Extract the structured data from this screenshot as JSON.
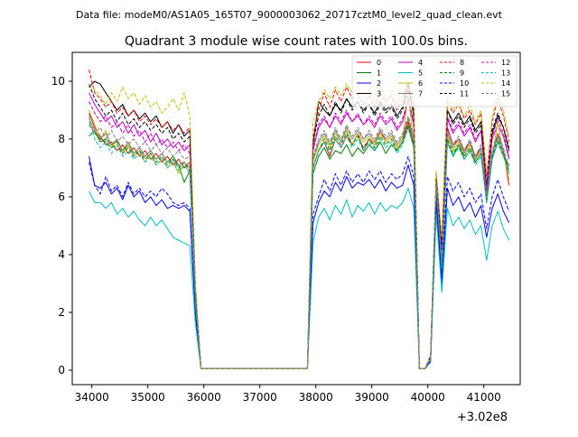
{
  "header": {
    "data_file": "Data file: modeM0/AS1A05_165T07_9000003062_20717cztM0_level2_quad_clean.evt"
  },
  "chart_data": {
    "type": "line",
    "title": "Quadrant 3 module wise count rates with 100.0s bins.",
    "xlabel": "",
    "ylabel": "",
    "x_offset_label": "+3.02e8",
    "xlim": [
      33650,
      41650
    ],
    "ylim": [
      -0.5,
      11.0
    ],
    "xticks": [
      34000,
      35000,
      36000,
      37000,
      38000,
      39000,
      40000,
      41000
    ],
    "yticks": [
      0,
      2,
      4,
      6,
      8,
      10
    ],
    "grid": false,
    "legend_position": "top-right",
    "legend_columns": 4,
    "x": [
      33950,
      34050,
      34150,
      34250,
      34350,
      34450,
      34550,
      34650,
      34750,
      34850,
      34950,
      35050,
      35150,
      35250,
      35350,
      35450,
      35550,
      35650,
      35750,
      35850,
      35950,
      36050,
      37850,
      37950,
      38050,
      38150,
      38250,
      38350,
      38450,
      38550,
      38650,
      38750,
      38850,
      38950,
      39050,
      39150,
      39250,
      39350,
      39450,
      39550,
      39650,
      39750,
      39850,
      39950,
      40050,
      40150,
      40250,
      40350,
      40450,
      40550,
      40650,
      40750,
      40850,
      40950,
      41050,
      41150,
      41250,
      41350,
      41450
    ],
    "series": [
      {
        "name": "0",
        "color": "#ff0000",
        "dash": false,
        "values": [
          8.9,
          8.4,
          8.1,
          7.8,
          7.9,
          7.6,
          7.8,
          7.5,
          7.7,
          7.4,
          7.6,
          7.3,
          7.5,
          7.2,
          7.4,
          7.1,
          7.3,
          7.0,
          7.2,
          2.5,
          0.05,
          0.05,
          0.05,
          7.0,
          7.6,
          7.9,
          7.4,
          8.0,
          7.7,
          8.1,
          7.8,
          8.2,
          7.6,
          8.0,
          7.8,
          8.3,
          7.9,
          8.1,
          7.7,
          8.0,
          8.6,
          7.8,
          0.05,
          0.05,
          0.4,
          6.5,
          3.5,
          8.4,
          7.8,
          8.0,
          7.6,
          7.9,
          7.4,
          7.7,
          6.0,
          7.5,
          8.2,
          7.6,
          6.4
        ]
      },
      {
        "name": "1",
        "color": "#008000",
        "dash": false,
        "values": [
          8.1,
          8.3,
          7.9,
          8.0,
          7.8,
          7.9,
          7.6,
          7.8,
          7.5,
          7.7,
          7.4,
          7.6,
          7.3,
          7.5,
          7.2,
          7.4,
          7.1,
          6.5,
          6.9,
          2.4,
          0.05,
          0.05,
          0.05,
          6.8,
          7.4,
          7.7,
          7.3,
          7.6,
          7.5,
          7.8,
          7.4,
          7.7,
          7.5,
          7.8,
          7.6,
          7.9,
          7.5,
          7.8,
          7.6,
          7.9,
          8.4,
          7.7,
          0.05,
          0.05,
          0.4,
          6.3,
          3.4,
          7.9,
          7.4,
          7.8,
          7.3,
          7.6,
          7.2,
          7.5,
          5.8,
          7.3,
          7.9,
          7.4,
          7.1
        ]
      },
      {
        "name": "2",
        "color": "#0000ff",
        "dash": false,
        "values": [
          7.4,
          6.4,
          6.3,
          6.5,
          6.1,
          6.3,
          5.9,
          6.4,
          6.0,
          6.2,
          5.8,
          6.0,
          5.7,
          5.9,
          5.6,
          5.7,
          5.6,
          5.7,
          5.5,
          1.9,
          0.05,
          0.05,
          0.05,
          5.1,
          5.8,
          6.2,
          6.0,
          6.5,
          6.2,
          6.7,
          6.3,
          6.5,
          6.4,
          6.6,
          6.3,
          6.6,
          6.2,
          6.5,
          6.3,
          6.4,
          7.1,
          6.4,
          0.05,
          0.05,
          0.3,
          5.8,
          2.9,
          6.3,
          5.7,
          6.0,
          5.5,
          5.8,
          5.3,
          5.7,
          4.6,
          5.6,
          6.1,
          5.5,
          5.1
        ]
      },
      {
        "name": "3",
        "color": "#000000",
        "dash": false,
        "values": [
          9.8,
          10.0,
          9.9,
          9.6,
          9.3,
          9.0,
          9.2,
          8.8,
          9.0,
          8.7,
          8.9,
          8.6,
          8.8,
          8.4,
          8.6,
          8.2,
          8.5,
          8.1,
          8.3,
          2.8,
          0.05,
          0.05,
          0.05,
          7.8,
          9.3,
          9.0,
          8.8,
          9.2,
          9.0,
          9.4,
          9.1,
          9.3,
          9.0,
          9.2,
          8.9,
          9.3,
          9.0,
          9.2,
          8.8,
          9.1,
          9.9,
          8.8,
          0.05,
          0.05,
          0.5,
          6.6,
          4.3,
          9.0,
          8.6,
          8.9,
          8.5,
          8.8,
          8.3,
          8.6,
          6.3,
          8.2,
          8.8,
          8.4,
          7.6
        ]
      },
      {
        "name": "4",
        "color": "#bf00bf",
        "dash": false,
        "values": [
          9.6,
          9.2,
          8.9,
          8.6,
          8.8,
          8.4,
          8.6,
          8.2,
          8.5,
          8.1,
          8.3,
          7.9,
          8.2,
          7.8,
          8.0,
          7.7,
          7.9,
          7.6,
          7.8,
          2.7,
          0.05,
          0.05,
          0.05,
          7.6,
          8.4,
          8.7,
          8.4,
          8.8,
          8.5,
          8.9,
          8.6,
          8.8,
          8.5,
          8.7,
          8.4,
          8.8,
          8.5,
          8.7,
          8.3,
          8.6,
          9.3,
          8.5,
          0.05,
          0.05,
          0.5,
          6.4,
          4.1,
          8.7,
          8.2,
          8.5,
          8.1,
          8.4,
          7.9,
          8.3,
          6.2,
          8.0,
          8.5,
          8.1,
          7.3
        ]
      },
      {
        "name": "5",
        "color": "#00bfbf",
        "dash": false,
        "values": [
          6.2,
          5.8,
          5.8,
          5.6,
          5.8,
          5.4,
          5.6,
          5.3,
          5.5,
          5.2,
          5.0,
          5.3,
          5.0,
          5.2,
          4.9,
          4.6,
          4.5,
          4.4,
          4.3,
          1.6,
          0.05,
          0.05,
          0.05,
          4.4,
          5.3,
          5.6,
          5.2,
          5.7,
          5.4,
          5.9,
          5.3,
          5.7,
          5.5,
          5.8,
          5.4,
          5.8,
          5.5,
          5.7,
          5.6,
          5.8,
          6.3,
          5.6,
          0.05,
          0.05,
          0.3,
          5.4,
          2.7,
          5.6,
          5.0,
          5.3,
          4.9,
          5.2,
          4.7,
          5.0,
          3.8,
          5.0,
          5.5,
          4.9,
          4.5
        ]
      },
      {
        "name": "6",
        "color": "#bfbf00",
        "dash": false,
        "values": [
          9.0,
          8.5,
          8.0,
          8.3,
          7.7,
          8.0,
          7.5,
          7.8,
          7.4,
          7.6,
          7.2,
          7.5,
          7.1,
          7.3,
          7.0,
          7.2,
          6.8,
          7.1,
          6.9,
          2.4,
          0.05,
          0.05,
          0.05,
          7.2,
          7.8,
          8.1,
          7.7,
          8.2,
          7.9,
          8.3,
          7.8,
          8.2,
          7.9,
          8.1,
          7.8,
          8.2,
          7.9,
          8.1,
          7.7,
          8.0,
          9.5,
          7.9,
          0.05,
          0.05,
          0.4,
          6.7,
          3.8,
          8.1,
          7.6,
          7.9,
          7.4,
          7.8,
          7.3,
          7.6,
          5.9,
          7.4,
          8.6,
          7.5,
          6.6
        ]
      },
      {
        "name": "7",
        "color": "#808080",
        "dash": false,
        "values": [
          8.7,
          8.3,
          8.0,
          8.2,
          7.8,
          8.0,
          7.6,
          7.9,
          7.5,
          7.7,
          7.4,
          7.6,
          7.3,
          7.5,
          7.2,
          7.3,
          7.1,
          7.2,
          7.0,
          2.5,
          0.05,
          0.05,
          0.05,
          7.3,
          7.9,
          8.2,
          7.8,
          8.3,
          7.9,
          8.4,
          8.0,
          8.3,
          8.0,
          8.2,
          7.9,
          8.3,
          8.0,
          8.2,
          7.8,
          8.1,
          8.7,
          8.0,
          0.05,
          0.05,
          0.4,
          6.4,
          3.6,
          8.2,
          7.7,
          8.0,
          7.5,
          7.9,
          7.3,
          7.7,
          5.9,
          7.5,
          8.1,
          7.6,
          6.8
        ]
      },
      {
        "name": "8",
        "color": "#ff0000",
        "dash": true,
        "values": [
          10.4,
          9.6,
          9.4,
          9.1,
          9.3,
          8.9,
          9.1,
          8.8,
          9.0,
          8.6,
          8.8,
          8.5,
          8.7,
          8.4,
          8.6,
          8.3,
          8.5,
          8.2,
          8.4,
          2.9,
          0.05,
          0.05,
          0.05,
          8.1,
          9.0,
          9.6,
          9.1,
          9.7,
          9.3,
          9.8,
          9.4,
          9.6,
          9.2,
          9.5,
          9.1,
          9.6,
          9.3,
          9.5,
          9.0,
          9.4,
          10.0,
          9.2,
          0.05,
          0.05,
          0.5,
          6.8,
          4.4,
          9.3,
          8.9,
          9.2,
          8.7,
          9.0,
          8.5,
          8.9,
          6.7,
          8.6,
          9.4,
          8.8,
          7.9
        ]
      },
      {
        "name": "9",
        "color": "#008000",
        "dash": true,
        "values": [
          8.5,
          8.2,
          8.0,
          7.9,
          7.7,
          7.8,
          7.5,
          7.7,
          7.4,
          7.6,
          7.3,
          7.5,
          7.2,
          7.4,
          7.1,
          7.3,
          7.0,
          7.2,
          6.9,
          2.4,
          0.05,
          0.05,
          0.05,
          7.0,
          7.6,
          8.0,
          7.6,
          8.1,
          7.8,
          8.2,
          7.8,
          8.1,
          7.7,
          8.0,
          7.7,
          8.1,
          7.8,
          8.0,
          7.6,
          7.9,
          8.5,
          7.8,
          0.05,
          0.05,
          0.4,
          6.5,
          3.6,
          8.0,
          7.5,
          7.8,
          7.4,
          7.7,
          7.2,
          7.5,
          5.9,
          7.4,
          8.0,
          7.5,
          6.9
        ]
      },
      {
        "name": "10",
        "color": "#0000ff",
        "dash": true,
        "values": [
          7.2,
          6.4,
          6.1,
          6.7,
          6.2,
          6.4,
          6.0,
          6.5,
          6.1,
          6.3,
          6.0,
          6.2,
          6.0,
          6.3,
          6.1,
          5.8,
          5.7,
          5.8,
          5.6,
          2.0,
          0.05,
          0.05,
          0.05,
          5.4,
          6.0,
          6.6,
          6.2,
          6.8,
          6.4,
          6.9,
          6.5,
          6.8,
          6.5,
          6.9,
          6.6,
          6.9,
          6.5,
          6.8,
          6.6,
          6.8,
          7.4,
          6.7,
          0.05,
          0.05,
          0.3,
          6.0,
          3.2,
          6.7,
          6.2,
          6.5,
          6.0,
          6.3,
          5.8,
          6.1,
          4.9,
          6.0,
          6.6,
          6.0,
          5.5
        ]
      },
      {
        "name": "11",
        "color": "#000000",
        "dash": true,
        "values": [
          9.9,
          9.4,
          9.1,
          8.8,
          9.0,
          8.6,
          8.9,
          8.5,
          8.7,
          8.4,
          8.6,
          8.3,
          8.5,
          8.2,
          8.4,
          8.0,
          8.2,
          7.9,
          8.1,
          2.8,
          0.05,
          0.05,
          0.05,
          7.9,
          8.8,
          9.2,
          8.8,
          9.3,
          8.9,
          9.4,
          9.0,
          9.3,
          8.9,
          9.2,
          8.8,
          9.2,
          8.9,
          9.1,
          8.7,
          9.0,
          9.7,
          8.9,
          0.05,
          0.05,
          0.5,
          6.6,
          4.2,
          9.0,
          8.5,
          8.8,
          8.4,
          8.7,
          8.2,
          8.5,
          6.4,
          8.3,
          8.9,
          8.4,
          7.7
        ]
      },
      {
        "name": "12",
        "color": "#bf00bf",
        "dash": true,
        "values": [
          9.3,
          8.9,
          8.6,
          8.8,
          8.4,
          8.6,
          8.2,
          8.5,
          8.1,
          8.3,
          7.9,
          8.2,
          7.8,
          8.0,
          7.7,
          7.9,
          7.6,
          7.8,
          7.5,
          2.6,
          0.05,
          0.05,
          0.05,
          7.7,
          8.5,
          8.8,
          8.4,
          8.9,
          8.6,
          9.0,
          8.6,
          8.9,
          8.5,
          8.8,
          8.5,
          8.9,
          8.6,
          8.8,
          8.4,
          8.7,
          9.4,
          8.6,
          0.05,
          0.05,
          0.5,
          6.5,
          4.2,
          8.8,
          8.3,
          8.6,
          8.2,
          8.5,
          8.0,
          8.3,
          6.3,
          8.1,
          8.7,
          8.2,
          7.4
        ]
      },
      {
        "name": "13",
        "color": "#00bfbf",
        "dash": true,
        "values": [
          8.8,
          8.0,
          7.7,
          7.9,
          7.5,
          7.8,
          7.4,
          7.6,
          7.3,
          7.5,
          7.2,
          7.4,
          7.1,
          7.3,
          7.0,
          7.2,
          6.9,
          7.1,
          6.8,
          2.3,
          0.05,
          0.05,
          0.05,
          7.0,
          7.6,
          7.9,
          7.5,
          8.0,
          7.7,
          8.1,
          7.7,
          8.0,
          7.6,
          7.9,
          7.6,
          8.0,
          7.7,
          7.9,
          7.5,
          7.8,
          8.4,
          7.7,
          0.05,
          0.05,
          0.4,
          6.4,
          3.5,
          7.9,
          7.4,
          7.7,
          7.3,
          7.6,
          7.1,
          7.4,
          5.8,
          7.3,
          7.9,
          7.4,
          6.8
        ]
      },
      {
        "name": "14",
        "color": "#bfbf00",
        "dash": true,
        "values": [
          9.9,
          9.7,
          9.5,
          9.2,
          9.6,
          9.3,
          9.8,
          9.4,
          9.6,
          9.2,
          9.5,
          9.1,
          9.3,
          8.9,
          9.1,
          9.4,
          9.0,
          9.6,
          8.8,
          3.0,
          0.05,
          0.05,
          0.05,
          8.6,
          9.3,
          9.7,
          9.4,
          9.8,
          9.5,
          9.9,
          9.6,
          9.8,
          9.4,
          9.7,
          9.3,
          9.8,
          9.5,
          9.7,
          9.2,
          9.6,
          10.0,
          9.4,
          0.05,
          0.05,
          0.5,
          6.9,
          4.6,
          9.5,
          9.0,
          9.3,
          8.8,
          9.2,
          8.6,
          9.0,
          6.8,
          8.8,
          9.6,
          9.0,
          8.1
        ]
      },
      {
        "name": "15",
        "color": "#808080",
        "dash": true,
        "values": [
          8.6,
          8.2,
          8.4,
          8.0,
          8.3,
          7.9,
          8.1,
          7.8,
          8.0,
          7.7,
          7.9,
          7.6,
          7.8,
          7.5,
          7.7,
          7.4,
          7.6,
          7.3,
          7.4,
          2.6,
          0.05,
          0.05,
          0.05,
          7.4,
          8.0,
          8.3,
          7.9,
          8.4,
          8.0,
          8.5,
          8.1,
          8.4,
          8.0,
          8.3,
          8.0,
          8.4,
          8.1,
          8.3,
          7.9,
          8.2,
          8.8,
          8.1,
          0.05,
          0.05,
          0.4,
          6.5,
          3.7,
          8.3,
          7.8,
          8.1,
          7.6,
          8.0,
          7.4,
          7.8,
          6.0,
          7.6,
          8.2,
          7.7,
          7.0
        ]
      }
    ]
  }
}
